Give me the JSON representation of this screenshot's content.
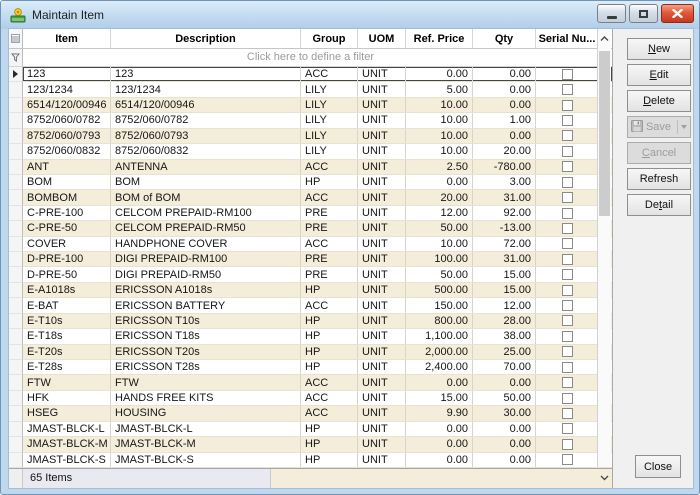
{
  "window": {
    "title": "Maintain Item"
  },
  "grid": {
    "columns": [
      "Item",
      "Description",
      "Group",
      "UOM",
      "Ref. Price",
      "Qty",
      "Serial Nu..."
    ],
    "filter_hint": "Click here to define a filter",
    "selected_index": 0,
    "rows": [
      {
        "item": "123",
        "description": "123",
        "group": "ACC",
        "uom": "UNIT",
        "ref_price": "0.00",
        "qty": "0.00",
        "serial_checked": false
      },
      {
        "item": "123/1234",
        "description": "123/1234",
        "group": "LILY",
        "uom": "UNIT",
        "ref_price": "5.00",
        "qty": "0.00",
        "serial_checked": false
      },
      {
        "item": "6514/120/00946",
        "description": "6514/120/00946",
        "group": "LILY",
        "uom": "UNIT",
        "ref_price": "10.00",
        "qty": "0.00",
        "serial_checked": false
      },
      {
        "item": "8752/060/0782",
        "description": "8752/060/0782",
        "group": "LILY",
        "uom": "UNIT",
        "ref_price": "10.00",
        "qty": "1.00",
        "serial_checked": false
      },
      {
        "item": "8752/060/0793",
        "description": "8752/060/0793",
        "group": "LILY",
        "uom": "UNIT",
        "ref_price": "10.00",
        "qty": "0.00",
        "serial_checked": false
      },
      {
        "item": "8752/060/0832",
        "description": "8752/060/0832",
        "group": "LILY",
        "uom": "UNIT",
        "ref_price": "10.00",
        "qty": "20.00",
        "serial_checked": false
      },
      {
        "item": "ANT",
        "description": "ANTENNA",
        "group": "ACC",
        "uom": "UNIT",
        "ref_price": "2.50",
        "qty": "-780.00",
        "serial_checked": false
      },
      {
        "item": "BOM",
        "description": "BOM",
        "group": "HP",
        "uom": "UNIT",
        "ref_price": "0.00",
        "qty": "3.00",
        "serial_checked": false
      },
      {
        "item": "BOMBOM",
        "description": "BOM of BOM",
        "group": "ACC",
        "uom": "UNIT",
        "ref_price": "20.00",
        "qty": "31.00",
        "serial_checked": false
      },
      {
        "item": "C-PRE-100",
        "description": "CELCOM PREPAID-RM100",
        "group": "PRE",
        "uom": "UNIT",
        "ref_price": "12.00",
        "qty": "92.00",
        "serial_checked": false
      },
      {
        "item": "C-PRE-50",
        "description": "CELCOM PREPAID-RM50",
        "group": "PRE",
        "uom": "UNIT",
        "ref_price": "50.00",
        "qty": "-13.00",
        "serial_checked": false
      },
      {
        "item": "COVER",
        "description": "HANDPHONE COVER",
        "group": "ACC",
        "uom": "UNIT",
        "ref_price": "10.00",
        "qty": "72.00",
        "serial_checked": false
      },
      {
        "item": "D-PRE-100",
        "description": "DIGI PREPAID-RM100",
        "group": "PRE",
        "uom": "UNIT",
        "ref_price": "100.00",
        "qty": "31.00",
        "serial_checked": false
      },
      {
        "item": "D-PRE-50",
        "description": "DIGI PREPAID-RM50",
        "group": "PRE",
        "uom": "UNIT",
        "ref_price": "50.00",
        "qty": "15.00",
        "serial_checked": false
      },
      {
        "item": "E-A1018s",
        "description": "ERICSSON A1018s",
        "group": "HP",
        "uom": "UNIT",
        "ref_price": "500.00",
        "qty": "15.00",
        "serial_checked": false
      },
      {
        "item": "E-BAT",
        "description": "ERICSSON BATTERY",
        "group": "ACC",
        "uom": "UNIT",
        "ref_price": "150.00",
        "qty": "12.00",
        "serial_checked": false
      },
      {
        "item": "E-T10s",
        "description": "ERICSSON T10s",
        "group": "HP",
        "uom": "UNIT",
        "ref_price": "800.00",
        "qty": "28.00",
        "serial_checked": false
      },
      {
        "item": "E-T18s",
        "description": "ERICSSON T18s",
        "group": "HP",
        "uom": "UNIT",
        "ref_price": "1,100.00",
        "qty": "38.00",
        "serial_checked": false
      },
      {
        "item": "E-T20s",
        "description": "ERICSSON T20s",
        "group": "HP",
        "uom": "UNIT",
        "ref_price": "2,000.00",
        "qty": "25.00",
        "serial_checked": false
      },
      {
        "item": "E-T28s",
        "description": "ERICSSON T28s",
        "group": "HP",
        "uom": "UNIT",
        "ref_price": "2,400.00",
        "qty": "70.00",
        "serial_checked": false
      },
      {
        "item": "FTW",
        "description": "FTW",
        "group": "ACC",
        "uom": "UNIT",
        "ref_price": "0.00",
        "qty": "0.00",
        "serial_checked": false
      },
      {
        "item": "HFK",
        "description": "HANDS FREE KITS",
        "group": "ACC",
        "uom": "UNIT",
        "ref_price": "15.00",
        "qty": "50.00",
        "serial_checked": false
      },
      {
        "item": "HSEG",
        "description": "HOUSING",
        "group": "ACC",
        "uom": "UNIT",
        "ref_price": "9.90",
        "qty": "30.00",
        "serial_checked": false
      },
      {
        "item": "JMAST-BLCK-L",
        "description": "JMAST-BLCK-L",
        "group": "HP",
        "uom": "UNIT",
        "ref_price": "0.00",
        "qty": "0.00",
        "serial_checked": false
      },
      {
        "item": "JMAST-BLCK-M",
        "description": "JMAST-BLCK-M",
        "group": "HP",
        "uom": "UNIT",
        "ref_price": "0.00",
        "qty": "0.00",
        "serial_checked": false
      },
      {
        "item": "JMAST-BLCK-S",
        "description": "JMAST-BLCK-S",
        "group": "HP",
        "uom": "UNIT",
        "ref_price": "0.00",
        "qty": "0.00",
        "serial_checked": false
      }
    ],
    "footer_count": "65 Items"
  },
  "panel": {
    "buttons": [
      {
        "id": "new",
        "label": "New",
        "mnemonic": "N",
        "enabled": true
      },
      {
        "id": "edit",
        "label": "Edit",
        "mnemonic": "E",
        "enabled": true
      },
      {
        "id": "delete",
        "label": "Delete",
        "mnemonic": "D",
        "enabled": true
      },
      {
        "id": "save",
        "label": "Save",
        "mnemonic": "",
        "enabled": false,
        "icon": "floppy-icon",
        "split": true
      },
      {
        "id": "cancel",
        "label": "Cancel",
        "mnemonic": "C",
        "enabled": false
      },
      {
        "id": "refresh",
        "label": "Refresh",
        "mnemonic": "",
        "enabled": true
      },
      {
        "id": "detail",
        "label": "Detail",
        "mnemonic": "t",
        "enabled": true
      }
    ],
    "close_label": "Close"
  },
  "icons": {
    "app": "maintain-item-icon",
    "minimize": "minimize-icon",
    "maximize": "maximize-icon",
    "close": "close-icon",
    "grid_corner": "grid-corner-icon",
    "filter": "funnel-icon",
    "save": "floppy-icon",
    "scroll_up": "chevron-up-icon",
    "scroll_down": "chevron-down-icon",
    "splitter": "chevron-right-icon",
    "row_pointer": "row-pointer-icon"
  },
  "colors": {
    "row_alt": "#f4edda",
    "selection_border": "#454545",
    "frame_blue": "#bfd8ee",
    "close_red": "#d9472b",
    "footer_count_bg": "#e9e9f2"
  }
}
